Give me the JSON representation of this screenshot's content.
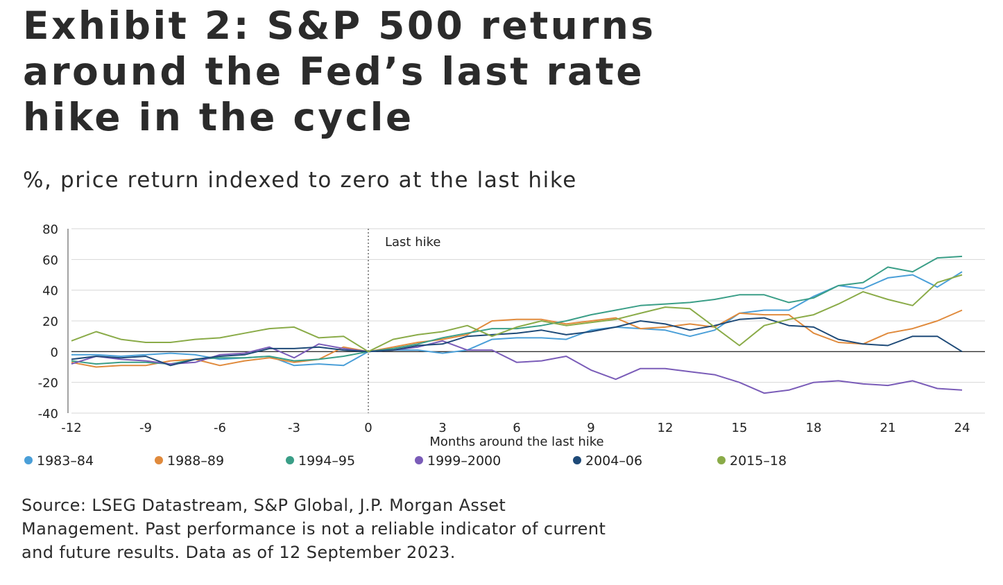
{
  "header": {
    "title_lines": [
      "Exhibit 2: S&P 500 returns",
      "around the Fed’s last rate",
      "hike in the cycle"
    ],
    "subtitle": "%, price return indexed to zero at the last hike"
  },
  "footer": {
    "source_lines": [
      "Source: LSEG Datastream, S&P Global, J.P. Morgan Asset",
      "Management. Past performance is not a reliable indicator of current",
      "and future results. Data as of 12 September 2023."
    ]
  },
  "chart_data": {
    "type": "line",
    "title": "Exhibit 2: S&P 500 returns around the Fed’s last rate hike in the cycle",
    "subtitle": "%, price return indexed to zero at the last hike",
    "xlabel": "Months around the last hike",
    "ylabel": "",
    "xlim": [
      -12,
      24
    ],
    "ylim": [
      -40,
      80
    ],
    "x_ticks": [
      -12,
      -9,
      -6,
      -3,
      0,
      3,
      6,
      9,
      12,
      15,
      18,
      21,
      24
    ],
    "y_ticks": [
      -40,
      -20,
      0,
      20,
      40,
      60,
      80
    ],
    "grid": "horizontal",
    "legend_position": "bottom",
    "annotation": {
      "text": "Last hike",
      "x": 0
    },
    "x": [
      -12,
      -11,
      -10,
      -9,
      -8,
      -7,
      -6,
      -5,
      -4,
      -3,
      -2,
      -1,
      0,
      1,
      2,
      3,
      4,
      5,
      6,
      7,
      8,
      9,
      10,
      11,
      12,
      13,
      14,
      15,
      16,
      17,
      18,
      19,
      20,
      21,
      22,
      23,
      24
    ],
    "series": [
      {
        "name": "1983–84",
        "color": "#4a9fd8",
        "values": [
          -2,
          -2,
          -3,
          -2,
          -1,
          -2,
          -5,
          -4,
          -3,
          -9,
          -8,
          -9,
          0,
          1,
          1,
          -1,
          1,
          8,
          9,
          9,
          8,
          14,
          16,
          15,
          14,
          10,
          14,
          25,
          27,
          27,
          36,
          43,
          41,
          48,
          50,
          42,
          52
        ]
      },
      {
        "name": "1988–89",
        "color": "#e08a3c",
        "values": [
          -7,
          -10,
          -9,
          -9,
          -6,
          -5,
          -9,
          -6,
          -4,
          -7,
          -5,
          3,
          0,
          3,
          6,
          8,
          11,
          20,
          21,
          21,
          18,
          20,
          22,
          15,
          16,
          18,
          16,
          25,
          24,
          24,
          12,
          6,
          5,
          12,
          15,
          20,
          27
        ]
      },
      {
        "name": "1994–95",
        "color": "#3a9e87",
        "values": [
          -6,
          -8,
          -7,
          -7,
          -8,
          -5,
          -4,
          -4,
          -3,
          -6,
          -5,
          -3,
          0,
          2,
          5,
          9,
          12,
          15,
          15,
          17,
          20,
          24,
          27,
          30,
          31,
          32,
          34,
          37,
          37,
          32,
          35,
          43,
          45,
          55,
          52,
          61,
          62
        ]
      },
      {
        "name": "1999–2000",
        "color": "#7a5cb8",
        "values": [
          -8,
          -3,
          -5,
          -6,
          -8,
          -7,
          -2,
          -1,
          3,
          -4,
          5,
          2,
          0,
          1,
          3,
          7,
          1,
          1,
          -7,
          -6,
          -3,
          -12,
          -18,
          -11,
          -11,
          -13,
          -15,
          -20,
          -27,
          -25,
          -20,
          -19,
          -21,
          -22,
          -19,
          -24,
          -25
        ]
      },
      {
        "name": "2004–06",
        "color": "#1e4a78",
        "values": [
          -5,
          -3,
          -4,
          -3,
          -9,
          -5,
          -3,
          -2,
          2,
          2,
          3,
          1,
          0,
          1,
          4,
          5,
          10,
          11,
          12,
          14,
          11,
          13,
          16,
          20,
          18,
          14,
          17,
          21,
          22,
          17,
          16,
          8,
          5,
          4,
          10,
          10,
          0
        ]
      },
      {
        "name": "2015–18",
        "color": "#8aab48",
        "values": [
          7,
          13,
          8,
          6,
          6,
          8,
          9,
          12,
          15,
          16,
          9,
          10,
          0,
          8,
          11,
          13,
          17,
          10,
          16,
          20,
          17,
          19,
          21,
          25,
          29,
          28,
          16,
          4,
          17,
          21,
          24,
          31,
          39,
          34,
          30,
          45,
          50
        ]
      }
    ]
  }
}
